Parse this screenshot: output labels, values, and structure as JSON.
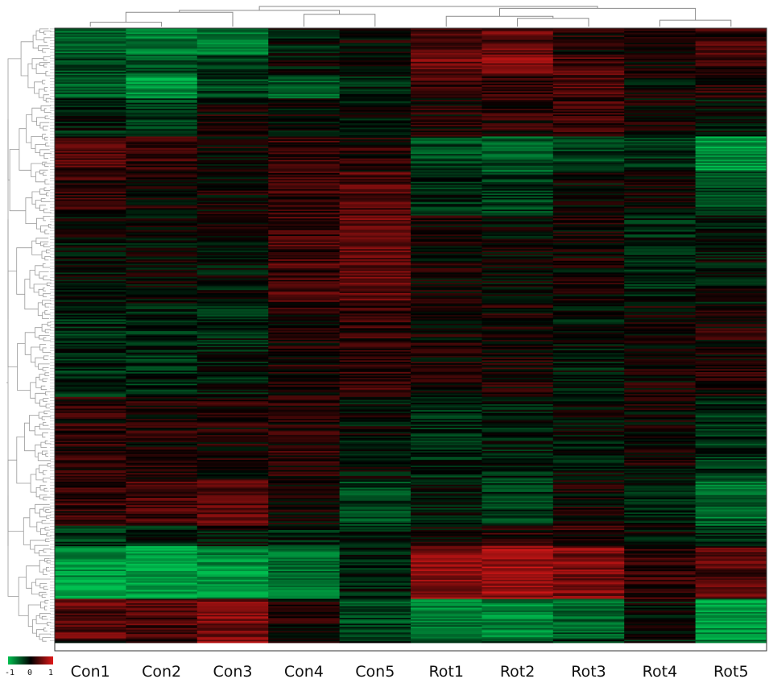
{
  "chart_data": {
    "type": "heatmap",
    "title": "",
    "xlabel": "",
    "ylabel": "",
    "columns": [
      "Con1",
      "Con2",
      "Con3",
      "Con4",
      "Con5",
      "Rot1",
      "Rot2",
      "Rot3",
      "Rot4",
      "Rot5"
    ],
    "color_scale": {
      "min": -1,
      "mid": 0,
      "max": 1,
      "tick_labels": [
        "-1",
        "0",
        "1"
      ],
      "colors": {
        "low": "#00c050",
        "mid": "#000000",
        "high": "#e01818"
      }
    },
    "row_dendrogram": true,
    "column_dendrogram": true,
    "column_dendrogram_merges": [
      [
        0,
        1
      ],
      [
        8,
        9
      ],
      [
        6,
        7
      ],
      [
        5,
        6
      ],
      [
        3,
        4
      ],
      [
        0,
        2
      ],
      [
        0,
        3
      ],
      [
        5,
        8
      ],
      [
        0,
        5
      ]
    ],
    "row_blocks": [
      {
        "rows": 18,
        "values": [
          -0.5,
          -0.65,
          -0.6,
          -0.1,
          0.05,
          0.3,
          0.4,
          0.1,
          0.05,
          0.25
        ]
      },
      {
        "rows": 14,
        "values": [
          -0.35,
          -0.45,
          -0.25,
          -0.05,
          0.0,
          0.45,
          0.55,
          0.3,
          0.1,
          0.2
        ]
      },
      {
        "rows": 16,
        "values": [
          -0.5,
          -0.75,
          -0.35,
          -0.45,
          -0.15,
          0.25,
          0.2,
          0.35,
          0.0,
          0.15
        ]
      },
      {
        "rows": 26,
        "values": [
          -0.15,
          -0.3,
          0.05,
          0.0,
          -0.1,
          0.1,
          0.15,
          0.25,
          0.05,
          -0.05
        ]
      },
      {
        "rows": 24,
        "values": [
          0.3,
          0.2,
          0.05,
          0.25,
          0.15,
          -0.35,
          -0.45,
          -0.3,
          -0.2,
          -0.75
        ]
      },
      {
        "rows": 30,
        "values": [
          0.2,
          0.1,
          0.05,
          0.25,
          0.35,
          -0.2,
          -0.3,
          -0.05,
          0.05,
          -0.35
        ]
      },
      {
        "rows": 60,
        "values": [
          -0.05,
          0.0,
          -0.05,
          0.3,
          0.4,
          0.05,
          0.0,
          0.05,
          -0.2,
          -0.05
        ]
      },
      {
        "rows": 64,
        "values": [
          -0.2,
          -0.2,
          -0.15,
          0.1,
          0.2,
          0.05,
          0.1,
          -0.1,
          0.05,
          0.1
        ]
      },
      {
        "rows": 56,
        "values": [
          0.15,
          0.1,
          0.1,
          0.15,
          -0.05,
          -0.2,
          -0.15,
          -0.05,
          0.05,
          -0.25
        ]
      },
      {
        "rows": 32,
        "values": [
          0.2,
          0.3,
          0.4,
          0.0,
          -0.35,
          -0.1,
          -0.3,
          0.05,
          -0.15,
          -0.55
        ]
      },
      {
        "rows": 14,
        "values": [
          -0.3,
          -0.2,
          -0.1,
          -0.2,
          -0.15,
          0.0,
          0.15,
          0.15,
          -0.05,
          -0.2
        ]
      },
      {
        "rows": 36,
        "values": [
          -0.8,
          -0.85,
          -0.75,
          -0.6,
          -0.15,
          0.6,
          0.7,
          0.55,
          0.2,
          0.35
        ]
      },
      {
        "rows": 28,
        "values": [
          0.4,
          0.35,
          0.55,
          0.1,
          -0.35,
          -0.65,
          -0.7,
          -0.5,
          -0.05,
          -0.8
        ]
      },
      {
        "rows": 2,
        "values": [
          0.0,
          0.05,
          0.6,
          0.0,
          -0.2,
          -0.4,
          -0.3,
          -0.2,
          -0.1,
          -0.5
        ]
      }
    ]
  }
}
